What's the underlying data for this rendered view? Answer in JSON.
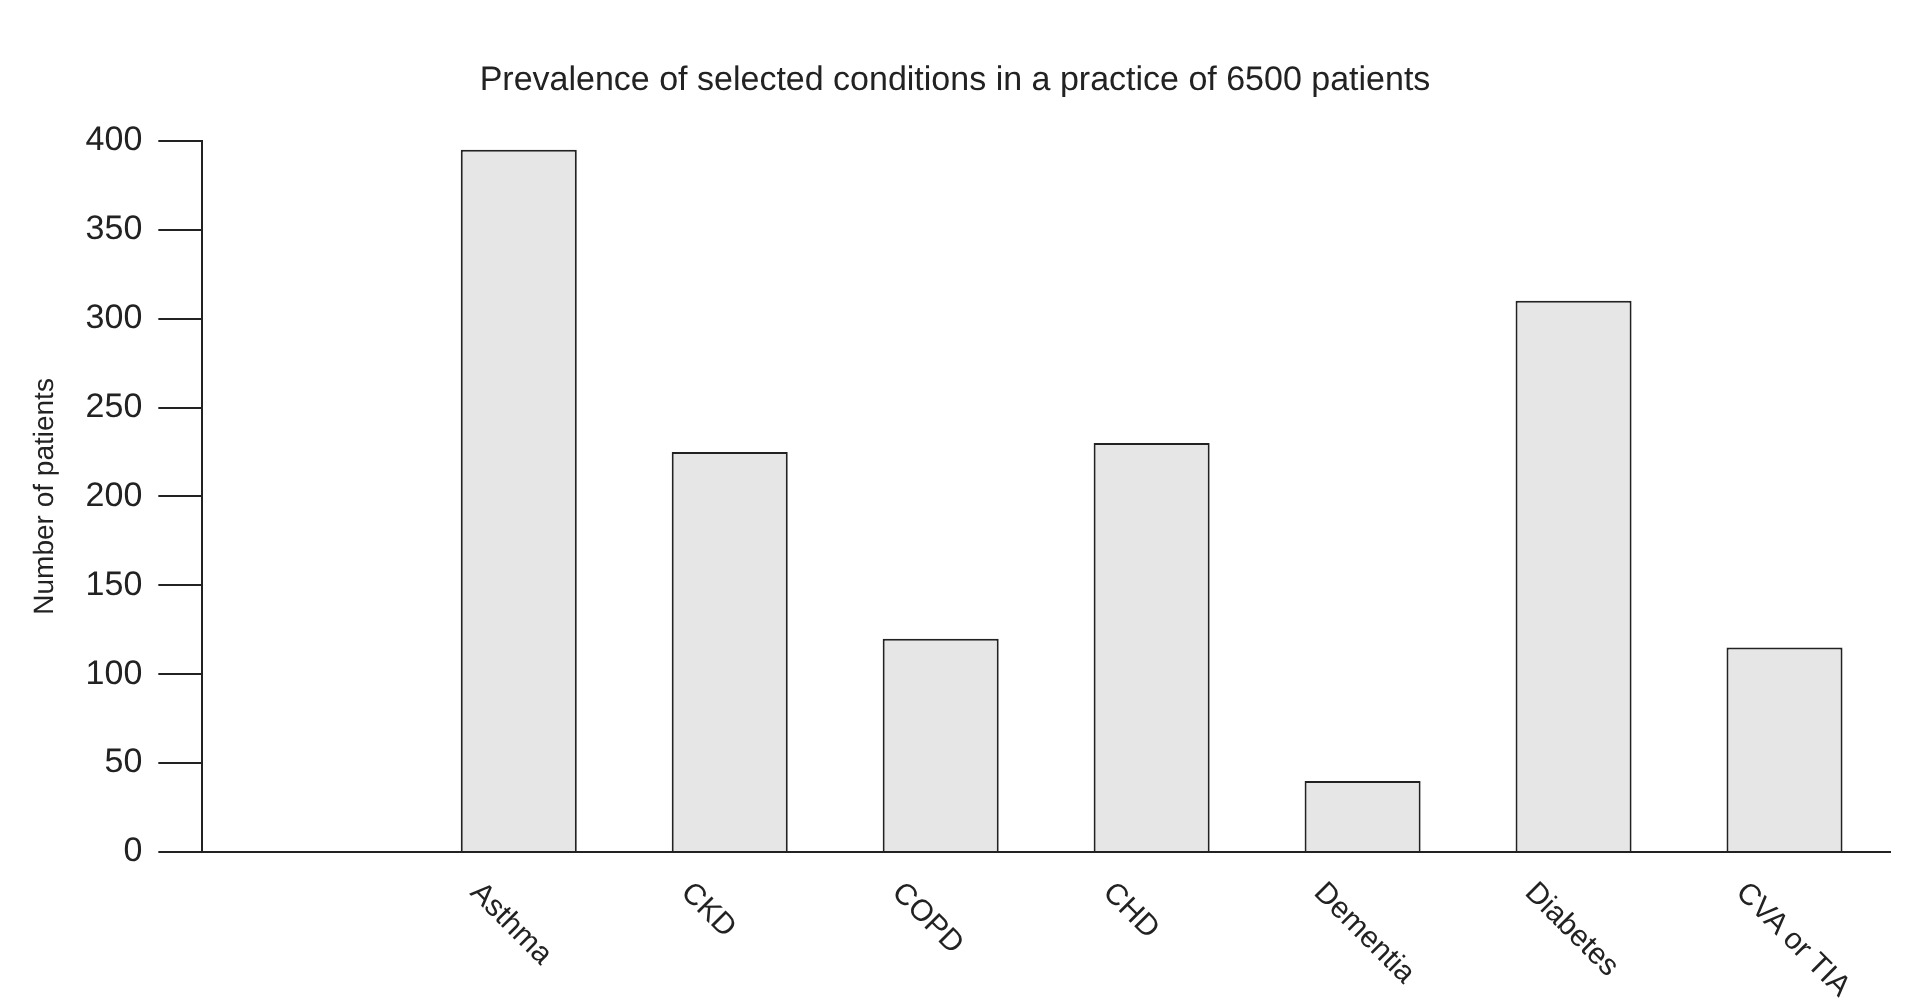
{
  "chart_data": {
    "type": "bar",
    "title": "Prevalence of selected conditions in a practice of 6500 patients",
    "ylabel": "Number of patients",
    "categories": [
      null,
      "Asthma",
      "CKD",
      "COPD",
      "CHD",
      "Dementia",
      "Diabetes",
      "CVA or TIA"
    ],
    "values": [
      null,
      395,
      225,
      120,
      230,
      40,
      310,
      115
    ],
    "color": "#e6e6e6",
    "ylim": [
      0,
      400
    ],
    "yticks": [
      0,
      50,
      100,
      150,
      200,
      250,
      300,
      350,
      400
    ],
    "grid": false,
    "legend": false
  }
}
